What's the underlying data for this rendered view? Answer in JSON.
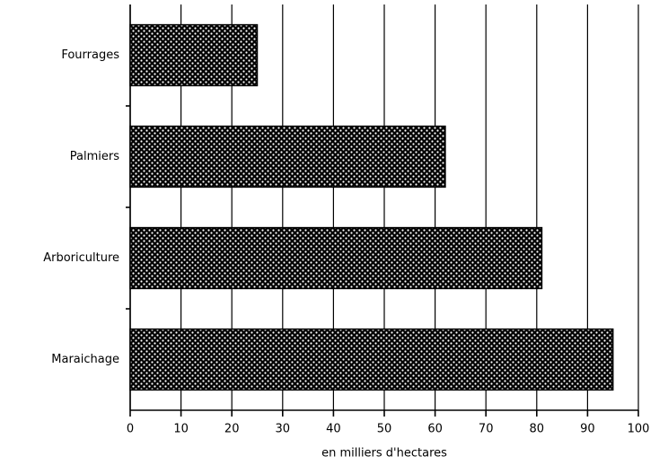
{
  "chart_data": {
    "type": "bar",
    "orientation": "horizontal",
    "xlabel": "en milliers d'hectares",
    "categories": [
      "Fourrages",
      "Palmiers",
      "Arboriculture",
      "Maraichage"
    ],
    "values": [
      25,
      62,
      81,
      95
    ],
    "color": "#000000",
    "xlim": [
      0,
      100
    ],
    "xticks": [
      0,
      10,
      20,
      30,
      40,
      50,
      60,
      70,
      80,
      90,
      100
    ],
    "grid": true
  }
}
